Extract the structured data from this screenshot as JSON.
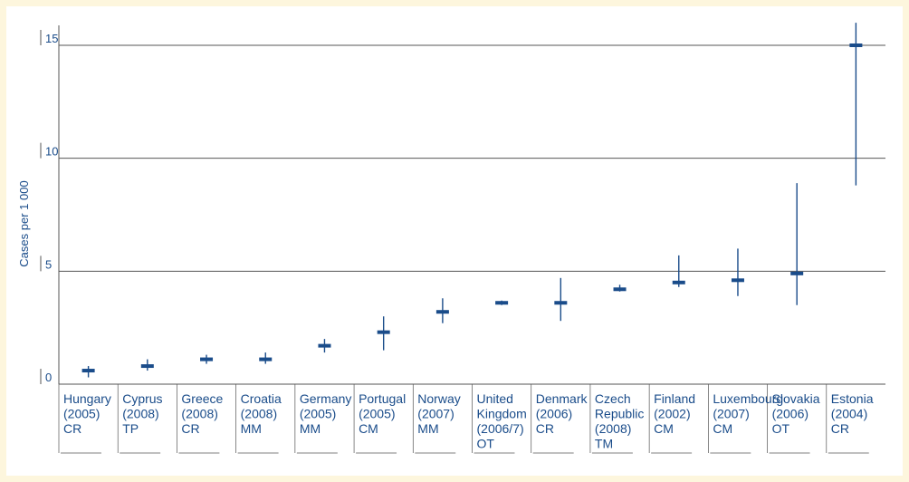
{
  "chart_data": {
    "type": "range",
    "title": "",
    "ylabel": "Cases per 1 000",
    "xlabel": "",
    "ylim": [
      0,
      15
    ],
    "yticks": [
      0,
      5,
      10,
      15
    ],
    "grid": true,
    "colors": {
      "background": "#fdf6dd",
      "plot": "#ffffff",
      "mark": "#1a4c8a",
      "grid": "#555555"
    },
    "categories": [
      {
        "lines": [
          "Hungary",
          "(2005)",
          "CR"
        ],
        "mid": 0.6,
        "low": 0.3,
        "high": 0.8
      },
      {
        "lines": [
          "Cyprus",
          "(2008)",
          "TP"
        ],
        "mid": 0.8,
        "low": 0.6,
        "high": 1.1
      },
      {
        "lines": [
          "Greece",
          "(2008)",
          "CR"
        ],
        "mid": 1.1,
        "low": 0.9,
        "high": 1.3
      },
      {
        "lines": [
          "Croatia",
          "(2008)",
          "MM"
        ],
        "mid": 1.1,
        "low": 0.9,
        "high": 1.4
      },
      {
        "lines": [
          "Germany",
          "(2005)",
          "MM"
        ],
        "mid": 1.7,
        "low": 1.4,
        "high": 2.0
      },
      {
        "lines": [
          "Portugal",
          "(2005)",
          "CM"
        ],
        "mid": 2.3,
        "low": 1.5,
        "high": 3.0
      },
      {
        "lines": [
          "Norway",
          "(2007)",
          "MM"
        ],
        "mid": 3.2,
        "low": 2.7,
        "high": 3.8
      },
      {
        "lines": [
          "United",
          "Kingdom",
          "(2006/7)",
          "OT"
        ],
        "mid": 3.6,
        "low": 3.5,
        "high": 3.7
      },
      {
        "lines": [
          "Denmark",
          "(2006)",
          "CR"
        ],
        "mid": 3.6,
        "low": 2.8,
        "high": 4.7
      },
      {
        "lines": [
          "Czech",
          "Republic",
          "(2008)",
          "TM"
        ],
        "mid": 4.2,
        "low": 4.1,
        "high": 4.4
      },
      {
        "lines": [
          "Finland",
          "(2002)",
          "CM"
        ],
        "mid": 4.5,
        "low": 4.3,
        "high": 5.7
      },
      {
        "lines": [
          "Luxembourg",
          "(2007)",
          "CM"
        ],
        "mid": 4.6,
        "low": 3.9,
        "high": 6.0
      },
      {
        "lines": [
          "Slovakia",
          "(2006)",
          "OT"
        ],
        "mid": 4.9,
        "low": 3.5,
        "high": 8.9
      },
      {
        "lines": [
          "Estonia",
          "(2004)",
          "CR"
        ],
        "mid": 15.0,
        "low": 8.8,
        "high": 16.0
      }
    ]
  }
}
